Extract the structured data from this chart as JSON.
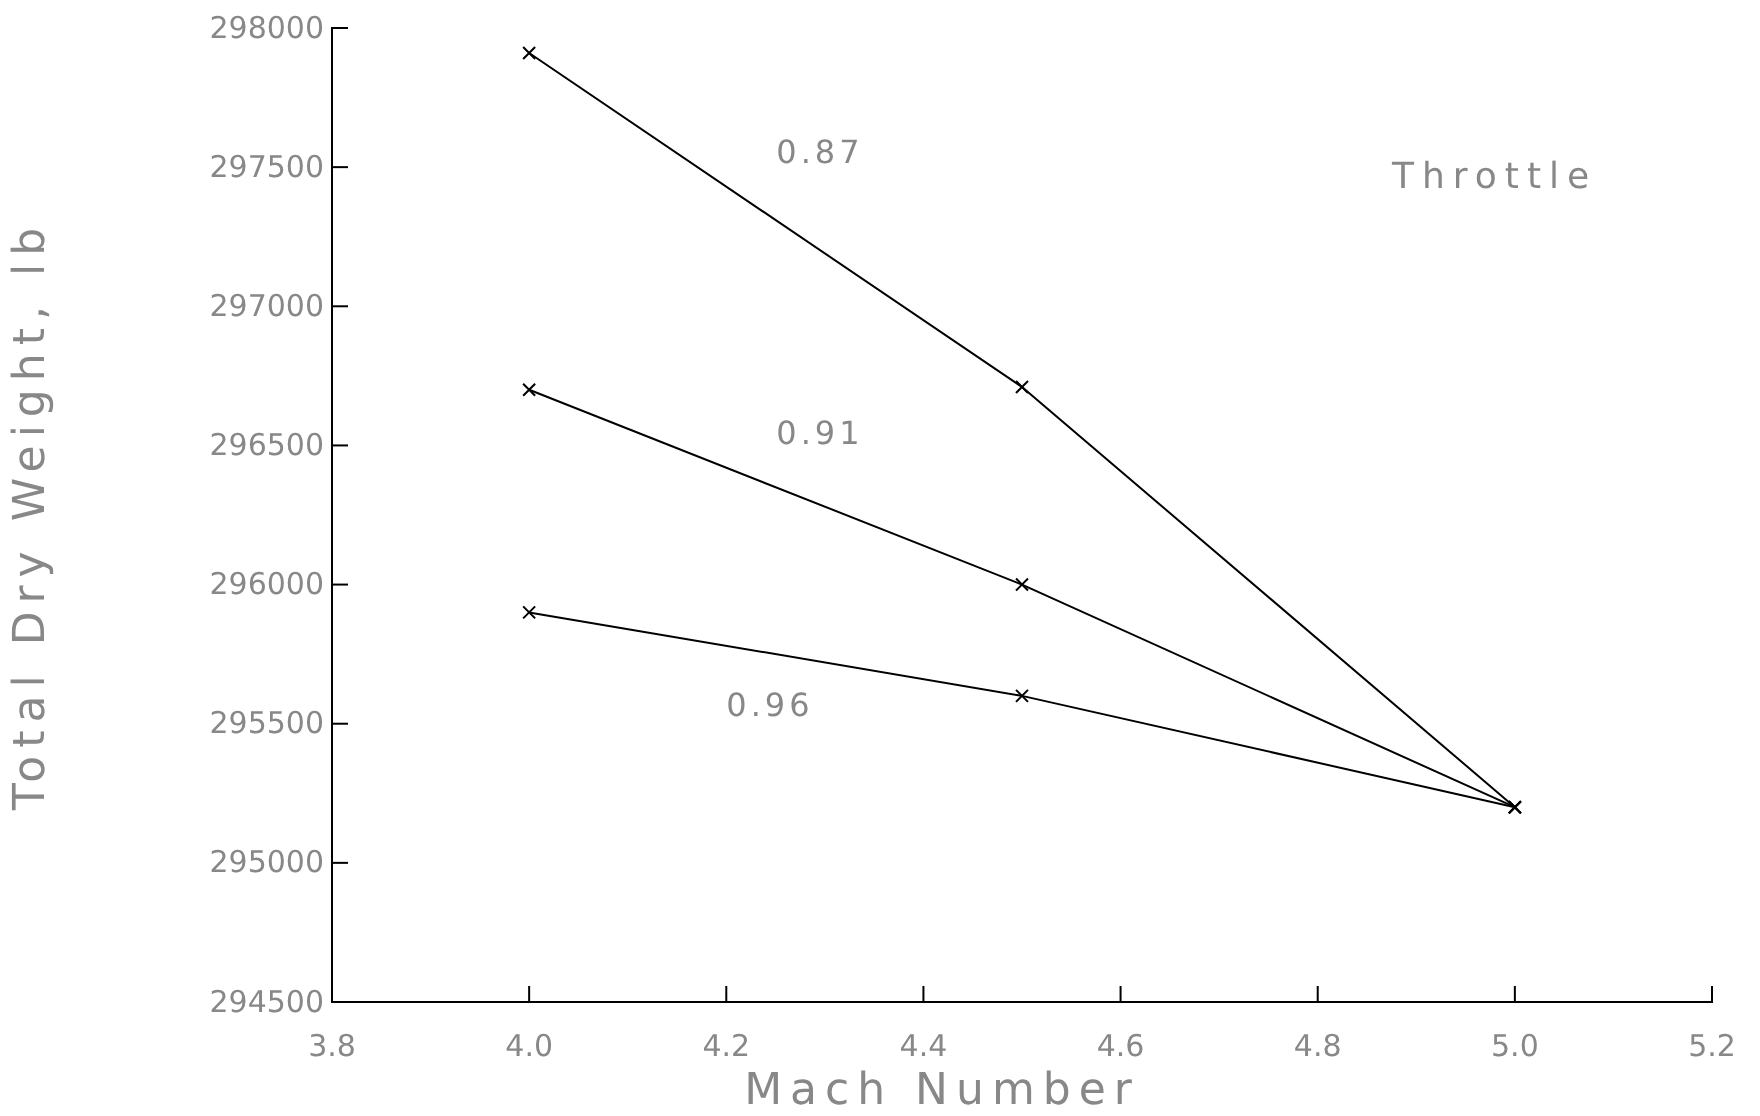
{
  "chart_data": {
    "type": "line",
    "xlabel": "Mach Number",
    "ylabel": "Total Dry Weight, lb",
    "legend_title": "Throttle",
    "x": [
      4.0,
      4.5,
      5.0
    ],
    "series": [
      {
        "name": "0.87",
        "color": "#000000",
        "values": [
          297910,
          296710,
          295200
        ]
      },
      {
        "name": "0.91",
        "color": "#000000",
        "values": [
          296700,
          296000,
          295200
        ]
      },
      {
        "name": "0.96",
        "color": "#000000",
        "values": [
          295900,
          295600,
          295200
        ]
      }
    ],
    "xlim": [
      3.8,
      5.2
    ],
    "xticks": [
      3.8,
      {
        "value": 4,
        "label": "4.0"
      },
      4.2,
      4.4,
      4.6,
      4.8,
      {
        "value": 5,
        "label": "5.0"
      },
      5.2
    ],
    "ylim": [
      294500,
      298000
    ],
    "yticks": [
      294500,
      295000,
      295500,
      296000,
      296500,
      297000,
      297500,
      298000
    ],
    "marker": "cross",
    "grid": false
  }
}
